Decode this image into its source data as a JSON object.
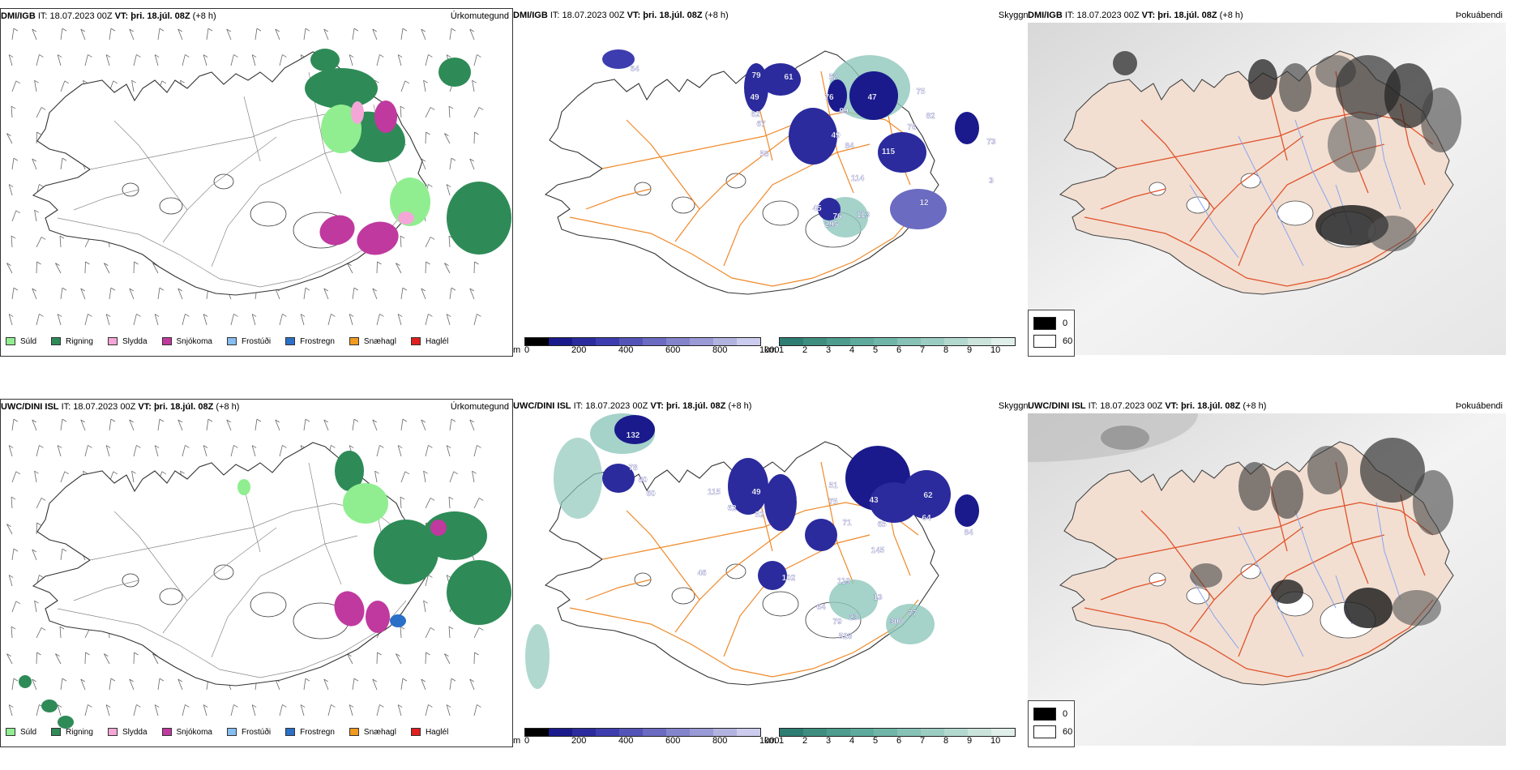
{
  "rows": [
    {
      "model": "DMI/IGB",
      "it_label": "IT:",
      "it_value": "18.07.2023 00Z",
      "vt_label": "VT:",
      "vt_value": "þri. 18.júl. 08Z",
      "lead": "(+8 h)",
      "precip_type_label": "Úrkomutegund",
      "visibility_label": "Skyggni",
      "fog_label": "Þokuábendi",
      "cloud_values": [
        "64",
        "79",
        "61",
        "52",
        "49",
        "76",
        "47",
        "75",
        "62",
        "99",
        "82",
        "67",
        "49",
        "76",
        "84",
        "115",
        "73",
        "58",
        "114",
        "45",
        "76",
        "113",
        "12",
        "295",
        "3"
      ],
      "fog_legend": [
        "0",
        "60"
      ]
    },
    {
      "model": "UWC/DINI ISL",
      "it_label": "IT:",
      "it_value": "18.07.2023 00Z",
      "vt_label": "VT:",
      "vt_value": "þri. 18.júl. 08Z",
      "lead": "(+8 h)",
      "precip_type_label": "Úrkomutegund",
      "visibility_label": "Skyggni",
      "fog_label": "Þokuábendi",
      "cloud_values": [
        "132",
        "78",
        "80",
        "115",
        "60",
        "49",
        "51",
        "75",
        "43",
        "62",
        "62",
        "52",
        "71",
        "65",
        "64",
        "145",
        "84",
        "46",
        "102",
        "119",
        "64",
        "79",
        "23",
        "13",
        "528",
        "300",
        "77"
      ],
      "fog_legend": [
        "0",
        "60"
      ]
    }
  ],
  "precip_legend": [
    {
      "label": "Súld",
      "color": "#90ee90"
    },
    {
      "label": "Rigning",
      "color": "#2e8b57"
    },
    {
      "label": "Slydda",
      "color": "#f4a6d7"
    },
    {
      "label": "Snjókoma",
      "color": "#c0399f"
    },
    {
      "label": "Frostúði",
      "color": "#87bdf0"
    },
    {
      "label": "Frostregn",
      "color": "#2a70c8"
    },
    {
      "label": "Snæhagl",
      "color": "#f09a20"
    },
    {
      "label": "Haglél",
      "color": "#e02020"
    }
  ],
  "cloud_scale": {
    "unit": "m",
    "ticks": [
      "0",
      "200",
      "400",
      "600",
      "800",
      "1000"
    ],
    "colors": [
      "#000000",
      "#1a1a8c",
      "#2b2b9e",
      "#3d3daf",
      "#5454b8",
      "#6b6bc2",
      "#8484cc",
      "#9a9ad6",
      "#b3b3e0",
      "#ccccee"
    ]
  },
  "vis_scale": {
    "unit": "km",
    "ticks": [
      "1",
      "2",
      "3",
      "4",
      "5",
      "6",
      "7",
      "8",
      "9",
      "10"
    ],
    "colors": [
      "#2e7d72",
      "#3e8e80",
      "#4d9c8e",
      "#5eaa9c",
      "#70b6a8",
      "#86c2b6",
      "#9ccdc2",
      "#b3d9cf",
      "#cae4dc",
      "#e0efea"
    ]
  }
}
